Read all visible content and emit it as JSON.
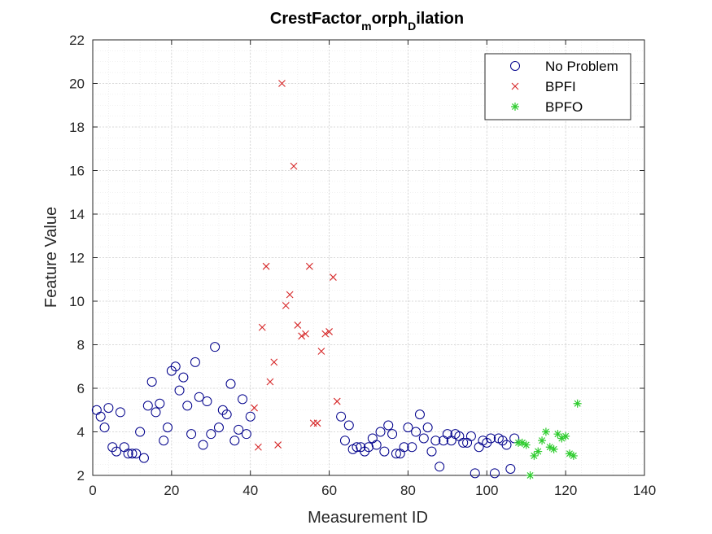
{
  "chart_data": {
    "type": "scatter",
    "title": {
      "base": "CrestFactor",
      "sub1": "m",
      "mid": "orph",
      "sub2": "D",
      "tail": "ilation"
    },
    "xlabel": "Measurement ID",
    "ylabel": "Feature Value",
    "xlim": [
      0,
      140
    ],
    "ylim": [
      2,
      22
    ],
    "xticks": [
      0,
      20,
      40,
      60,
      80,
      100,
      120,
      140
    ],
    "yticks": [
      2,
      4,
      6,
      8,
      10,
      12,
      14,
      16,
      18,
      20,
      22
    ],
    "grid": true,
    "minor_grid": true,
    "legend_position": "top-right",
    "series": [
      {
        "name": "No Problem",
        "marker": "circle",
        "color": "#00008b",
        "points": [
          [
            1,
            5.0
          ],
          [
            2,
            4.7
          ],
          [
            3,
            4.2
          ],
          [
            4,
            5.1
          ],
          [
            5,
            3.3
          ],
          [
            6,
            3.1
          ],
          [
            7,
            4.9
          ],
          [
            8,
            3.3
          ],
          [
            9,
            3.0
          ],
          [
            10,
            3.0
          ],
          [
            11,
            3.0
          ],
          [
            12,
            4.0
          ],
          [
            13,
            2.8
          ],
          [
            14,
            5.2
          ],
          [
            15,
            6.3
          ],
          [
            16,
            4.9
          ],
          [
            17,
            5.3
          ],
          [
            18,
            3.6
          ],
          [
            19,
            4.2
          ],
          [
            20,
            6.8
          ],
          [
            21,
            7.0
          ],
          [
            22,
            5.9
          ],
          [
            23,
            6.5
          ],
          [
            24,
            5.2
          ],
          [
            25,
            3.9
          ],
          [
            26,
            7.2
          ],
          [
            27,
            5.6
          ],
          [
            28,
            3.4
          ],
          [
            29,
            5.4
          ],
          [
            30,
            3.9
          ],
          [
            31,
            7.9
          ],
          [
            32,
            4.2
          ],
          [
            33,
            5.0
          ],
          [
            34,
            4.8
          ],
          [
            35,
            6.2
          ],
          [
            36,
            3.6
          ],
          [
            37,
            4.1
          ],
          [
            38,
            5.5
          ],
          [
            39,
            3.9
          ],
          [
            40,
            4.7
          ],
          [
            63,
            4.7
          ],
          [
            64,
            3.6
          ],
          [
            65,
            4.3
          ],
          [
            66,
            3.2
          ],
          [
            67,
            3.3
          ],
          [
            68,
            3.3
          ],
          [
            69,
            3.1
          ],
          [
            70,
            3.3
          ],
          [
            71,
            3.7
          ],
          [
            72,
            3.4
          ],
          [
            73,
            4.0
          ],
          [
            74,
            3.1
          ],
          [
            75,
            4.3
          ],
          [
            76,
            3.9
          ],
          [
            77,
            3.0
          ],
          [
            78,
            3.0
          ],
          [
            79,
            3.3
          ],
          [
            80,
            4.2
          ],
          [
            81,
            3.3
          ],
          [
            82,
            4.0
          ],
          [
            83,
            4.8
          ],
          [
            84,
            3.7
          ],
          [
            85,
            4.2
          ],
          [
            86,
            3.1
          ],
          [
            87,
            3.6
          ],
          [
            88,
            2.4
          ],
          [
            89,
            3.6
          ],
          [
            90,
            3.9
          ],
          [
            91,
            3.6
          ],
          [
            92,
            3.9
          ],
          [
            93,
            3.8
          ],
          [
            94,
            3.5
          ],
          [
            95,
            3.5
          ],
          [
            96,
            3.8
          ],
          [
            97,
            2.1
          ],
          [
            98,
            3.3
          ],
          [
            99,
            3.6
          ],
          [
            100,
            3.5
          ],
          [
            101,
            3.7
          ],
          [
            102,
            2.1
          ],
          [
            103,
            3.7
          ],
          [
            104,
            3.6
          ],
          [
            105,
            3.4
          ],
          [
            106,
            2.3
          ],
          [
            107,
            3.7
          ]
        ]
      },
      {
        "name": "BPFI",
        "marker": "x",
        "color": "#d62728",
        "points": [
          [
            41,
            5.1
          ],
          [
            42,
            3.3
          ],
          [
            43,
            8.8
          ],
          [
            44,
            11.6
          ],
          [
            45,
            6.3
          ],
          [
            46,
            7.2
          ],
          [
            47,
            3.4
          ],
          [
            48,
            20.0
          ],
          [
            49,
            9.8
          ],
          [
            50,
            10.3
          ],
          [
            51,
            16.2
          ],
          [
            52,
            8.9
          ],
          [
            53,
            8.4
          ],
          [
            54,
            8.5
          ],
          [
            55,
            11.6
          ],
          [
            56,
            4.4
          ],
          [
            57,
            4.4
          ],
          [
            58,
            7.7
          ],
          [
            59,
            8.5
          ],
          [
            60,
            8.6
          ],
          [
            61,
            11.1
          ],
          [
            62,
            5.4
          ]
        ]
      },
      {
        "name": "BPFO",
        "marker": "star",
        "color": "#2ecc2e",
        "points": [
          [
            108,
            3.5
          ],
          [
            109,
            3.5
          ],
          [
            110,
            3.4
          ],
          [
            111,
            2.0
          ],
          [
            112,
            2.9
          ],
          [
            113,
            3.1
          ],
          [
            114,
            3.6
          ],
          [
            115,
            4.0
          ],
          [
            116,
            3.3
          ],
          [
            117,
            3.2
          ],
          [
            118,
            3.9
          ],
          [
            119,
            3.7
          ],
          [
            120,
            3.8
          ],
          [
            121,
            3.0
          ],
          [
            122,
            2.9
          ],
          [
            123,
            5.3
          ]
        ]
      }
    ]
  }
}
